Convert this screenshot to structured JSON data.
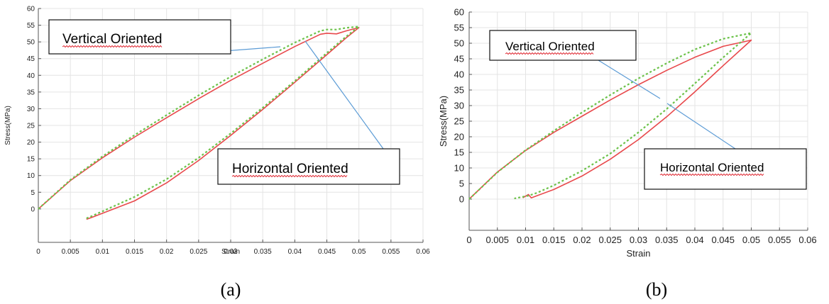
{
  "figure_labels": [
    "(a)",
    "(b)"
  ],
  "colors": {
    "vertical": "#e8484b",
    "horizontal": "#6cc24a",
    "callout": "#5b9bd5",
    "grid": "#e4e4e4",
    "axis": "#555555",
    "spellcheck": "#e0303a"
  },
  "chart_data": [
    {
      "type": "line",
      "panel": "(a)",
      "xlabel": "Strain",
      "ylabel": "Stress(MPa)",
      "xlim": [
        0,
        0.06
      ],
      "ylim": [
        -10,
        60
      ],
      "x_ticks": [
        "0",
        "0.005",
        "0.01",
        "0.015",
        "0.02",
        "0.025",
        "0.03",
        "0.035",
        "0.04",
        "0.045",
        "0.05",
        "0.055",
        "0.06"
      ],
      "y_ticks": [
        "0",
        "5",
        "10",
        "15",
        "20",
        "25",
        "30",
        "35",
        "40",
        "45",
        "50",
        "55",
        "60"
      ],
      "grid": true,
      "annotations": [
        "Vertical Oriented",
        "Horizontal Oriented"
      ],
      "series": [
        {
          "style": "solid-red",
          "x": [
            0,
            0.005,
            0.01,
            0.015,
            0.02,
            0.025,
            0.03,
            0.035,
            0.04,
            0.044,
            0.045,
            0.0465,
            0.048,
            0.05,
            0.048,
            0.045,
            0.04,
            0.035,
            0.03,
            0.025,
            0.02,
            0.015,
            0.01,
            0.0085,
            0.0075
          ],
          "y": [
            0,
            8.5,
            15.3,
            21.5,
            27.3,
            33,
            38.5,
            43.6,
            48.6,
            52.3,
            52.6,
            52.4,
            53.3,
            54.3,
            51.2,
            46.2,
            37.9,
            29.8,
            22,
            14.5,
            7.8,
            2.4,
            -1.3,
            -2.4,
            -3.1
          ]
        },
        {
          "style": "dashed-green",
          "x": [
            0,
            0.005,
            0.01,
            0.015,
            0.02,
            0.025,
            0.03,
            0.035,
            0.04,
            0.044,
            0.045,
            0.0465,
            0.048,
            0.05,
            0.048,
            0.045,
            0.04,
            0.035,
            0.03,
            0.025,
            0.02,
            0.015,
            0.01,
            0.0085,
            0.0075
          ],
          "y": [
            0,
            8.7,
            15.7,
            22.1,
            28.1,
            34,
            39.6,
            44.8,
            49.8,
            53.3,
            53.7,
            53.7,
            54.2,
            54.6,
            51.6,
            46.7,
            38.3,
            30.3,
            22.6,
            15.3,
            8.9,
            3.6,
            -0.7,
            -2,
            -2.8
          ]
        }
      ]
    },
    {
      "type": "line",
      "panel": "(b)",
      "xlabel": "Strain",
      "ylabel": "Stress(MPa)",
      "xlim": [
        0,
        0.06
      ],
      "ylim": [
        -10,
        60
      ],
      "x_ticks": [
        "0",
        "0.005",
        "0.01",
        "0.015",
        "0.02",
        "0.025",
        "0.03",
        "0.035",
        "0.04",
        "0.045",
        "0.05",
        "0.055",
        "0.06"
      ],
      "y_ticks": [
        "0",
        "5",
        "10",
        "15",
        "20",
        "25",
        "30",
        "35",
        "40",
        "45",
        "50",
        "55",
        "60"
      ],
      "grid": true,
      "annotations": [
        "Vertical Oriented",
        "Horizontal Oriented"
      ],
      "series": [
        {
          "style": "solid-red",
          "x": [
            0,
            0.005,
            0.01,
            0.015,
            0.02,
            0.025,
            0.03,
            0.035,
            0.04,
            0.045,
            0.05,
            0.045,
            0.04,
            0.035,
            0.03,
            0.025,
            0.02,
            0.015,
            0.0125,
            0.011,
            0.0105,
            0.0095
          ],
          "y": [
            0,
            8.7,
            15.6,
            21.4,
            26.6,
            31.8,
            36.7,
            41.3,
            45.5,
            49,
            51,
            42.8,
            34.4,
            26.4,
            19.1,
            12.8,
            7.4,
            3.1,
            1.4,
            0.4,
            1.5,
            0.4
          ]
        },
        {
          "style": "dashed-green",
          "x": [
            0,
            0.005,
            0.01,
            0.015,
            0.02,
            0.025,
            0.03,
            0.035,
            0.04,
            0.045,
            0.05,
            0.045,
            0.04,
            0.035,
            0.03,
            0.025,
            0.02,
            0.015,
            0.012,
            0.0105,
            0.008
          ],
          "y": [
            0,
            8.6,
            15.7,
            21.9,
            27.8,
            33.4,
            38.7,
            43.6,
            48,
            51.4,
            53.3,
            45.4,
            37.1,
            28.9,
            21.4,
            14.6,
            9.1,
            4.4,
            2,
            1.1,
            0.2
          ]
        }
      ]
    }
  ]
}
